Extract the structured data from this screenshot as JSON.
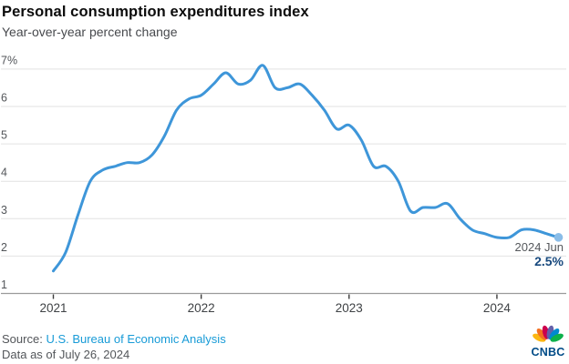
{
  "header": {
    "title": "Personal consumption expenditures index",
    "subtitle": "Year-over-year percent change"
  },
  "chart_data": {
    "type": "line",
    "title": "Personal consumption expenditures index",
    "subtitle": "Year-over-year percent change",
    "unit": "percent",
    "frequency": "monthly",
    "x_range": [
      "2021-01",
      "2024-06"
    ],
    "months": [
      "2021-01",
      "2021-02",
      "2021-03",
      "2021-04",
      "2021-05",
      "2021-06",
      "2021-07",
      "2021-08",
      "2021-09",
      "2021-10",
      "2021-11",
      "2021-12",
      "2022-01",
      "2022-02",
      "2022-03",
      "2022-04",
      "2022-05",
      "2022-06",
      "2022-07",
      "2022-08",
      "2022-09",
      "2022-10",
      "2022-11",
      "2022-12",
      "2023-01",
      "2023-02",
      "2023-03",
      "2023-04",
      "2023-05",
      "2023-06",
      "2023-07",
      "2023-08",
      "2023-09",
      "2023-10",
      "2023-11",
      "2023-12",
      "2024-01",
      "2024-02",
      "2024-03",
      "2024-04",
      "2024-05",
      "2024-06"
    ],
    "series": [
      {
        "name": "PCE price index, year-over-year percent change",
        "color": "#3e96d9",
        "values": [
          1.6,
          2.1,
          3.1,
          4.0,
          4.3,
          4.4,
          4.5,
          4.5,
          4.7,
          5.2,
          5.9,
          6.2,
          6.3,
          6.6,
          6.9,
          6.6,
          6.7,
          7.1,
          6.5,
          6.5,
          6.6,
          6.3,
          5.9,
          5.4,
          5.5,
          5.1,
          4.4,
          4.4,
          4.0,
          3.2,
          3.3,
          3.3,
          3.4,
          3.0,
          2.7,
          2.6,
          2.5,
          2.5,
          2.7,
          2.7,
          2.6,
          2.5
        ]
      }
    ],
    "x_tick_labels": [
      "2021",
      "2022",
      "2023",
      "2024"
    ],
    "x_tick_month_index": [
      0,
      12,
      24,
      36
    ],
    "y_ticks": [
      {
        "value": 7,
        "label": "7%"
      },
      {
        "value": 6,
        "label": "6"
      },
      {
        "value": 5,
        "label": "5"
      },
      {
        "value": 4,
        "label": "4"
      },
      {
        "value": 3,
        "label": "3"
      },
      {
        "value": 2,
        "label": "2"
      },
      {
        "value": 1,
        "label": "1"
      }
    ],
    "ylim": [
      1,
      7.3
    ],
    "grid": "horizontal",
    "legend": "none",
    "end_point": {
      "label": "2024 Jun",
      "value": 2.5,
      "display": "2.5%"
    }
  },
  "annotation": {
    "label": "2024 Jun",
    "value": "2.5%"
  },
  "footer": {
    "source_prefix": "Source:",
    "source_link": "U.S. Bureau of Economic Analysis",
    "data_as_of": "Data as of July 26, 2024"
  },
  "logo": {
    "text": "CNBC"
  },
  "colors": {
    "line": "#3e96d9",
    "end_dot": "#8abde8",
    "value_text": "#17497e",
    "link": "#189bd7",
    "text_gray": "#53565a",
    "tick_label": "#3f4245",
    "grid": "#e2e2e2",
    "axis": "#9b9b9b",
    "tick": "#3b3b3b",
    "title": "#0c0c0c",
    "logo_text": "#004b87",
    "peacock": [
      "#fcb711",
      "#f37021",
      "#cc004c",
      "#6460aa",
      "#0089d0",
      "#0db14b"
    ]
  }
}
